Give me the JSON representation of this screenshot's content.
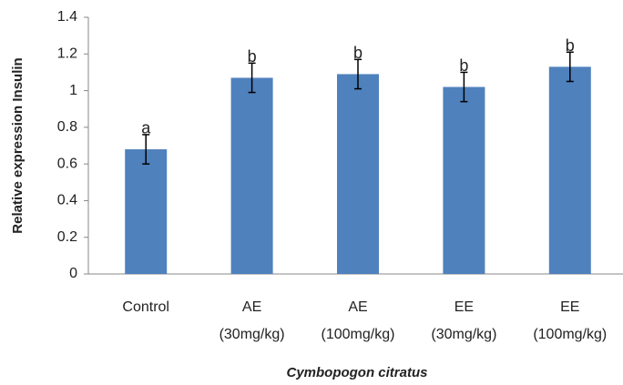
{
  "chart_data": {
    "type": "bar",
    "y_label": "Relative expression Insulin",
    "x_label": "Cymbopogon citratus",
    "categories": [
      [
        "Control"
      ],
      [
        "AE",
        "(30mg/kg)"
      ],
      [
        "AE",
        "(100mg/kg)"
      ],
      [
        "EE",
        "(30mg/kg)"
      ],
      [
        "EE",
        "(100mg/kg)"
      ]
    ],
    "values": [
      0.68,
      1.07,
      1.09,
      1.02,
      1.13
    ],
    "errors": [
      0.08,
      0.08,
      0.08,
      0.08,
      0.08
    ],
    "annotations": [
      "a",
      "b",
      "b",
      "b",
      "b"
    ],
    "color": "#4f81bd",
    "ylim": [
      0,
      1.4
    ],
    "yticks": [
      0,
      0.2,
      0.4,
      0.6,
      0.8,
      1,
      1.2,
      1.4
    ],
    "grid": false
  }
}
